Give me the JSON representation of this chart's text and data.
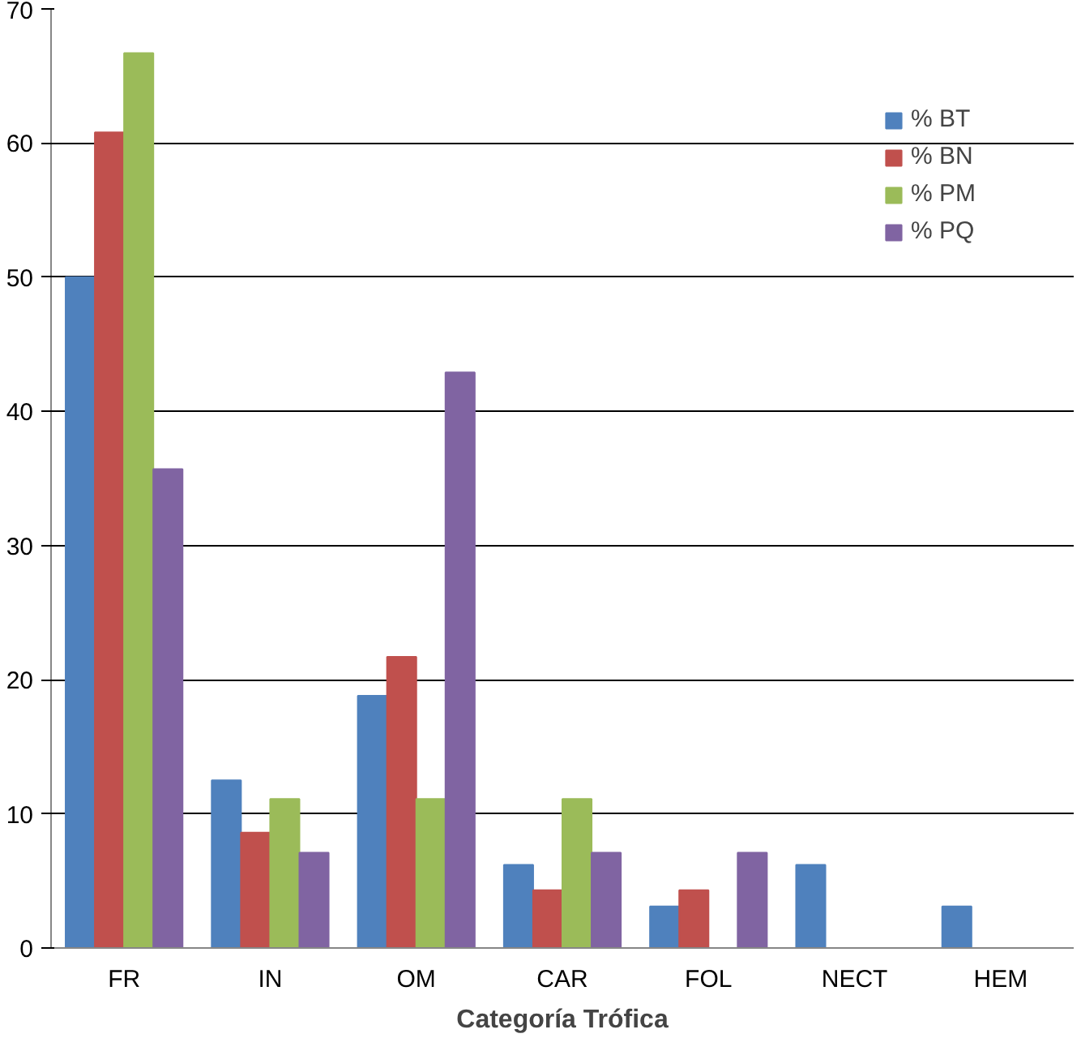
{
  "chart_data": {
    "type": "bar",
    "xlabel": "Categoría Trófica",
    "categories": [
      "FR",
      "IN",
      "OM",
      "CAR",
      "FOL",
      "NECT",
      "HEM"
    ],
    "series": [
      {
        "name": "% BT",
        "color": "#4f81bd",
        "values": [
          50,
          12.5,
          18.8,
          6.2,
          3.1,
          6.2,
          3.1
        ]
      },
      {
        "name": "% BN",
        "color": "#c0504d",
        "values": [
          60.8,
          8.6,
          21.7,
          4.3,
          4.3,
          0,
          0
        ]
      },
      {
        "name": "% PM",
        "color": "#9bbb59",
        "values": [
          66.7,
          11.1,
          11.1,
          11.1,
          0,
          0,
          0
        ]
      },
      {
        "name": "% PQ",
        "color": "#8064a2",
        "values": [
          35.7,
          7.1,
          42.9,
          7.1,
          7.1,
          0,
          0
        ]
      }
    ],
    "ylim": [
      0,
      70
    ],
    "yticks": [
      0,
      10,
      20,
      30,
      40,
      50,
      60,
      70
    ],
    "grid": "y",
    "legend": "top right"
  }
}
